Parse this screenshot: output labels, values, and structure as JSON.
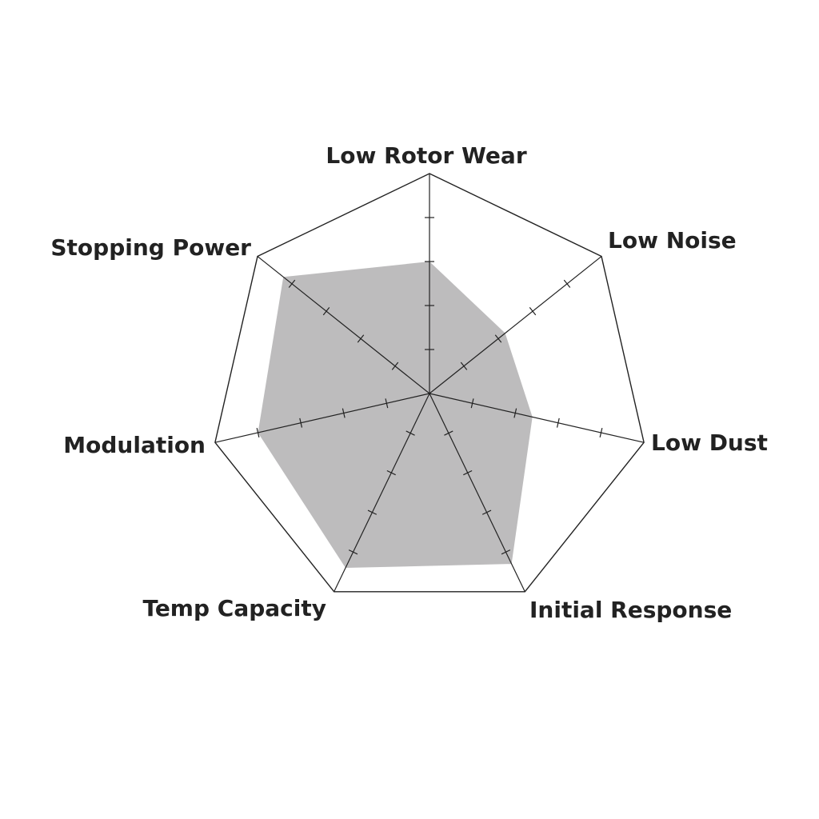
{
  "chart_data": {
    "type": "radar",
    "title": "",
    "axes": [
      "Low Rotor Wear",
      "Low Noise",
      "Low Dust",
      "Initial Response",
      "Temp Capacity",
      "Modulation",
      "Stopping Power"
    ],
    "values": [
      3.0,
      2.2,
      2.4,
      4.3,
      4.4,
      4.0,
      4.25
    ],
    "range": [
      0,
      5
    ],
    "ticks_per_axis": 5,
    "grid": false,
    "fill_color": "#bdbcbd",
    "line_color": "#222222"
  }
}
